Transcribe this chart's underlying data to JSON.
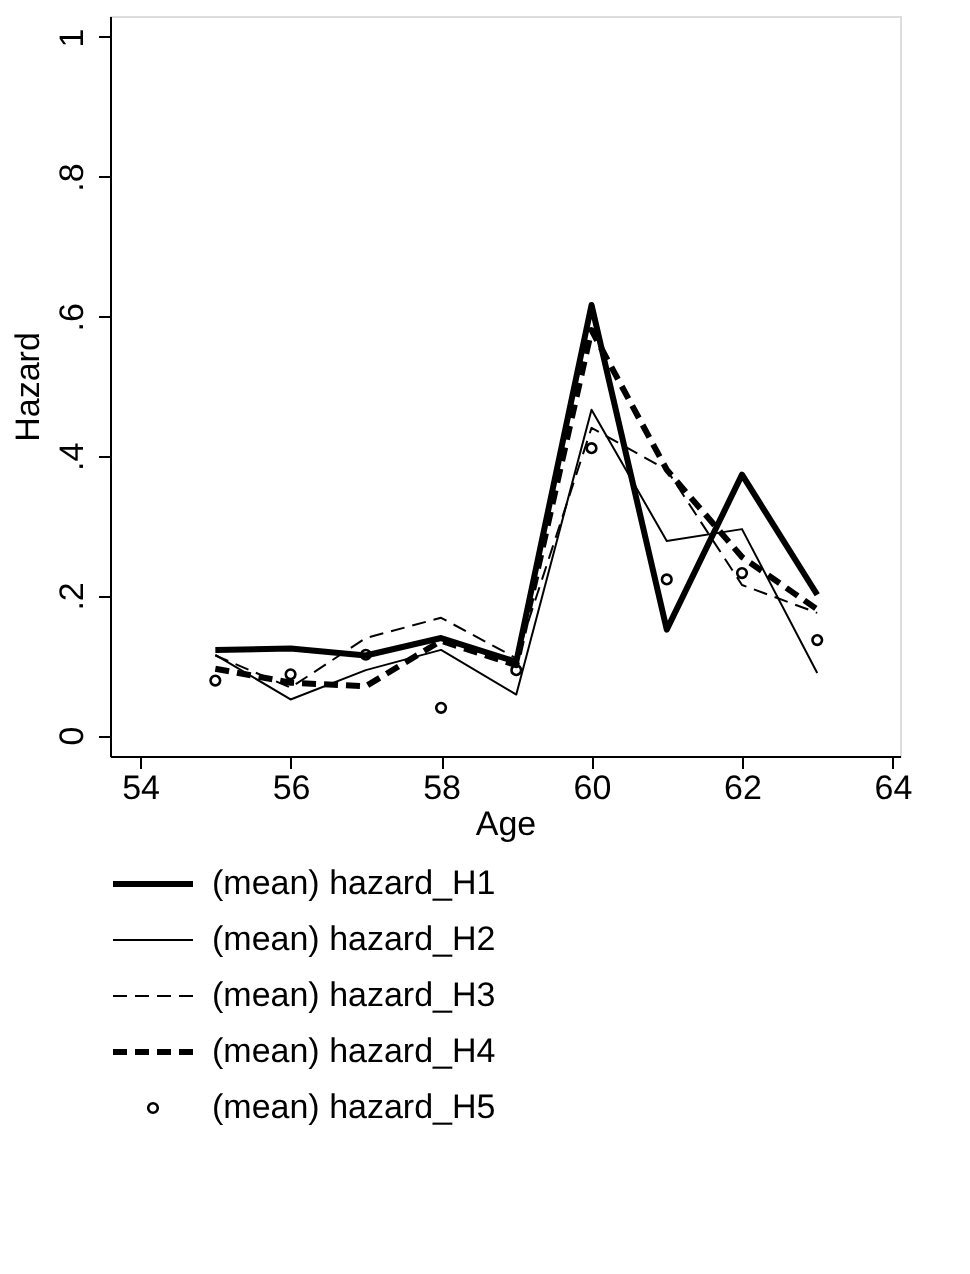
{
  "chart_data": {
    "type": "line",
    "xlabel": "Age",
    "ylabel": "Hazard",
    "x": [
      55,
      56,
      57,
      58,
      59,
      60,
      61,
      62,
      63
    ],
    "xlim": [
      53.6,
      64.1
    ],
    "xticks": [
      54,
      56,
      58,
      60,
      62,
      64
    ],
    "ylim": [
      -0.03,
      1.03
    ],
    "yticks": [
      {
        "value": 0,
        "label": "0"
      },
      {
        "value": 0.2,
        "label": ".2"
      },
      {
        "value": 0.4,
        "label": ".4"
      },
      {
        "value": 0.6,
        "label": ".6"
      },
      {
        "value": 0.8,
        "label": ".8"
      },
      {
        "value": 1,
        "label": "1"
      }
    ],
    "grid": false,
    "legend": "bottom",
    "series": [
      {
        "name": "(mean) hazard_H1",
        "color": "#000000",
        "line_style": "solid",
        "values": [
          0.122,
          0.124,
          0.114,
          0.139,
          0.105,
          0.616,
          0.151,
          0.373,
          0.201
        ]
      },
      {
        "name": "(mean) hazard_H2",
        "color": "#000000",
        "line_style": "solid",
        "values": [
          0.115,
          0.051,
          0.093,
          0.122,
          0.058,
          0.466,
          0.278,
          0.295,
          0.089
        ]
      },
      {
        "name": "(mean) hazard_H3",
        "color": "#000000",
        "line_style": "dashed",
        "values": [
          0.114,
          0.068,
          0.139,
          0.168,
          0.11,
          0.44,
          0.38,
          0.215,
          0.175
        ]
      },
      {
        "name": "(mean) hazard_H4",
        "color": "#000000",
        "line_style": "dashed",
        "values": [
          0.095,
          0.075,
          0.07,
          0.135,
          0.1,
          0.58,
          0.38,
          0.255,
          0.18
        ]
      },
      {
        "name": "(mean) hazard_H5",
        "color": "#000000",
        "type": "scatter",
        "marker": "circle",
        "values": [
          0.078,
          0.087,
          0.115,
          0.039,
          0.093,
          0.411,
          0.223,
          0.232,
          0.136
        ]
      }
    ]
  }
}
